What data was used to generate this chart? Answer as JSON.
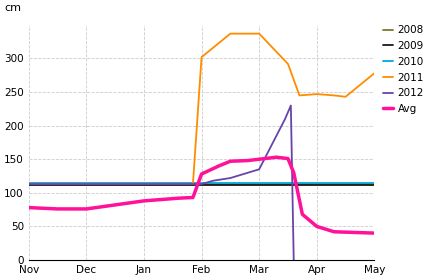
{
  "ylabel": "cm",
  "background_color": "#ffffff",
  "grid_color": "#cccccc",
  "ylim": [
    0,
    350
  ],
  "yticks": [
    0,
    50,
    100,
    150,
    200,
    250,
    300
  ],
  "series_order": [
    "2008",
    "2009",
    "2010",
    "2011",
    "2012",
    "Avg"
  ],
  "colors": {
    "2008": "#7a7a2a",
    "2009": "#1a1a1a",
    "2010": "#00aadd",
    "2011": "#ff8c00",
    "2012": "#6644aa",
    "Avg": "#ff1199"
  },
  "line_widths": {
    "2008": 1.3,
    "2009": 1.3,
    "2010": 1.3,
    "2011": 1.3,
    "2012": 1.3,
    "Avg": 2.5
  },
  "series_x": {
    "2008": [
      0,
      6
    ],
    "2009": [
      0,
      6
    ],
    "2010": [
      0,
      6
    ],
    "2011": [
      0,
      2.85,
      3.0,
      3.5,
      4.0,
      4.5,
      4.7,
      5.0,
      5.3,
      5.5,
      6.0
    ],
    "2012": [
      0,
      3.0,
      3.2,
      3.5,
      4.0,
      4.45,
      4.55,
      4.6
    ],
    "Avg": [
      0,
      0.5,
      1.0,
      1.5,
      2.0,
      2.3,
      2.6,
      2.85,
      3.0,
      3.3,
      3.5,
      3.8,
      4.0,
      4.3,
      4.5,
      4.6,
      4.75,
      5.0,
      5.3,
      6.0
    ]
  },
  "series_y": {
    "2008": [
      113,
      113
    ],
    "2009": [
      112,
      112
    ],
    "2010": [
      115,
      115
    ],
    "2011": [
      113,
      113,
      302,
      337,
      337,
      292,
      245,
      247,
      245,
      243,
      278
    ],
    "2012": [
      113,
      113,
      118,
      122,
      135,
      210,
      230,
      0
    ],
    "Avg": [
      78,
      76,
      76,
      82,
      88,
      90,
      92,
      93,
      128,
      140,
      147,
      148,
      150,
      153,
      151,
      130,
      68,
      50,
      42,
      40
    ]
  }
}
